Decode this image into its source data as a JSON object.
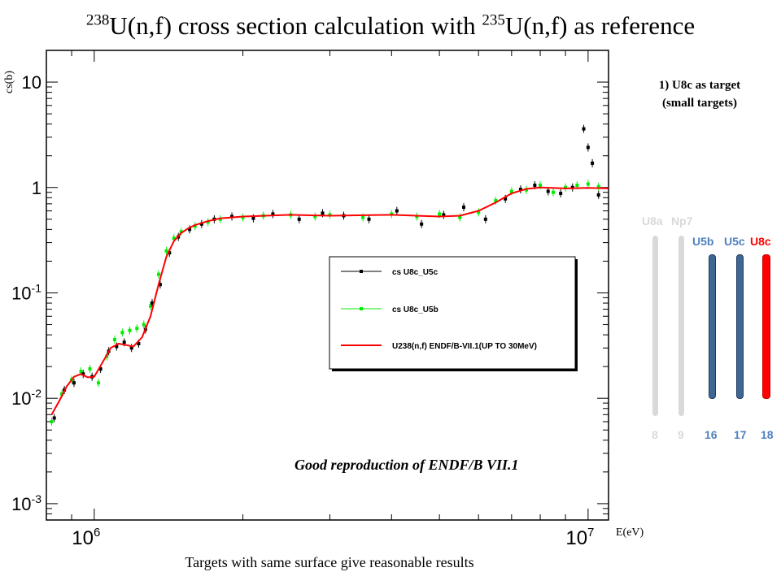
{
  "title": {
    "pre": "238",
    "mid1": "U(n,f) cross section calculation with ",
    "pre2": "235",
    "mid2": "U(n,f) as reference"
  },
  "side_title": {
    "line1": "1) U8c as target",
    "line2": "(small targets)"
  },
  "annotation": "Good reproduction of ENDF/B VII.1",
  "footer": "Targets with same surface give reasonable results",
  "colors": {
    "gray": "#d9d9d9",
    "blue": "#3f6795",
    "blue_text": "#4f81bd",
    "red": "#ff0000",
    "green": "#00ee00",
    "black": "#000000"
  },
  "targets": [
    {
      "name": "U8a",
      "number": "8",
      "state": "inactive"
    },
    {
      "name": "Np7",
      "number": "9",
      "state": "inactive"
    },
    {
      "name": "U5b",
      "number": "16",
      "state": "reference"
    },
    {
      "name": "U5c",
      "number": "17",
      "state": "reference"
    },
    {
      "name": "U8c",
      "number": "18",
      "state": "target"
    }
  ],
  "chart_data": {
    "type": "line",
    "title": "",
    "xlabel": "E(eV)",
    "ylabel": "cs(b)",
    "xscale": "log",
    "yscale": "log",
    "xlim": [
      800000,
      11000000
    ],
    "ylim": [
      0.0007,
      20
    ],
    "x_tick_labels": [
      "10^6",
      "10^7"
    ],
    "y_tick_labels": [
      "10^-3",
      "10^-2",
      "10^-1",
      "1",
      "10"
    ],
    "grid": false,
    "legend_position": "center-right",
    "legend": [
      {
        "label": "cs U8c_U5c",
        "color": "#000000"
      },
      {
        "label": "cs U8c_U5b",
        "color": "#00ee00"
      },
      {
        "label": "U238(n,f) ENDF/B-VII.1(UP TO 30MeV)",
        "color": "#ff0000"
      }
    ],
    "series": [
      {
        "name": "U238(n,f) ENDF/B-VII.1(UP TO 30MeV)",
        "x": [
          820000,
          850000,
          880000,
          910000,
          940000,
          970000,
          1000000,
          1040000,
          1080000,
          1120000,
          1160000,
          1200000,
          1250000,
          1300000,
          1350000,
          1400000,
          1450000,
          1500000,
          1550000,
          1600000,
          1700000,
          1800000,
          2000000,
          2500000,
          3000000,
          4000000,
          5000000,
          5500000,
          6000000,
          6500000,
          7000000,
          7500000,
          8000000,
          9000000,
          10000000,
          11000000
        ],
        "y": [
          0.007,
          0.0095,
          0.013,
          0.016,
          0.017,
          0.0158,
          0.016,
          0.022,
          0.03,
          0.033,
          0.032,
          0.031,
          0.038,
          0.06,
          0.12,
          0.22,
          0.31,
          0.37,
          0.41,
          0.44,
          0.48,
          0.51,
          0.53,
          0.55,
          0.54,
          0.55,
          0.53,
          0.54,
          0.6,
          0.72,
          0.88,
          0.97,
          1.0,
          0.98,
          0.99,
          0.98
        ]
      },
      {
        "name": "cs U8c_U5b",
        "x": [
          820000,
          860000,
          900000,
          940000,
          980000,
          1020000,
          1060000,
          1100000,
          1140000,
          1180000,
          1220000,
          1260000,
          1300000,
          1350000,
          1400000,
          1450000,
          1500000,
          1600000,
          1700000,
          1800000,
          2000000,
          2200000,
          2500000,
          2800000,
          3000000,
          3500000,
          4000000,
          4500000,
          5000000,
          5500000,
          6000000,
          6500000,
          7000000,
          7500000,
          8000000,
          8500000,
          9000000,
          9500000,
          10000000,
          10500000
        ],
        "y": [
          0.006,
          0.011,
          0.015,
          0.018,
          0.019,
          0.014,
          0.025,
          0.036,
          0.042,
          0.044,
          0.046,
          0.05,
          0.075,
          0.15,
          0.25,
          0.33,
          0.38,
          0.43,
          0.47,
          0.5,
          0.52,
          0.54,
          0.55,
          0.53,
          0.55,
          0.52,
          0.56,
          0.53,
          0.56,
          0.52,
          0.58,
          0.75,
          0.92,
          0.95,
          1.05,
          0.9,
          1.0,
          1.05,
          1.08,
          1.02
        ]
      },
      {
        "name": "cs U8c_U5c",
        "x": [
          830000,
          870000,
          910000,
          950000,
          990000,
          1030000,
          1070000,
          1110000,
          1150000,
          1190000,
          1230000,
          1270000,
          1310000,
          1360000,
          1420000,
          1480000,
          1560000,
          1650000,
          1750000,
          1900000,
          2100000,
          2300000,
          2600000,
          2900000,
          3200000,
          3600000,
          4100000,
          4600000,
          5100000,
          5600000,
          6200000,
          6800000,
          7300000,
          7800000,
          8300000,
          8800000,
          9300000,
          9800000,
          10000000,
          10200000,
          10500000
        ],
        "y": [
          0.0065,
          0.012,
          0.014,
          0.017,
          0.016,
          0.019,
          0.028,
          0.031,
          0.034,
          0.03,
          0.033,
          0.045,
          0.08,
          0.12,
          0.24,
          0.34,
          0.4,
          0.45,
          0.5,
          0.53,
          0.51,
          0.56,
          0.5,
          0.57,
          0.54,
          0.5,
          0.6,
          0.45,
          0.55,
          0.65,
          0.5,
          0.78,
          0.96,
          1.05,
          0.92,
          0.88,
          1.0,
          3.6,
          2.4,
          1.7,
          0.85
        ]
      }
    ]
  }
}
